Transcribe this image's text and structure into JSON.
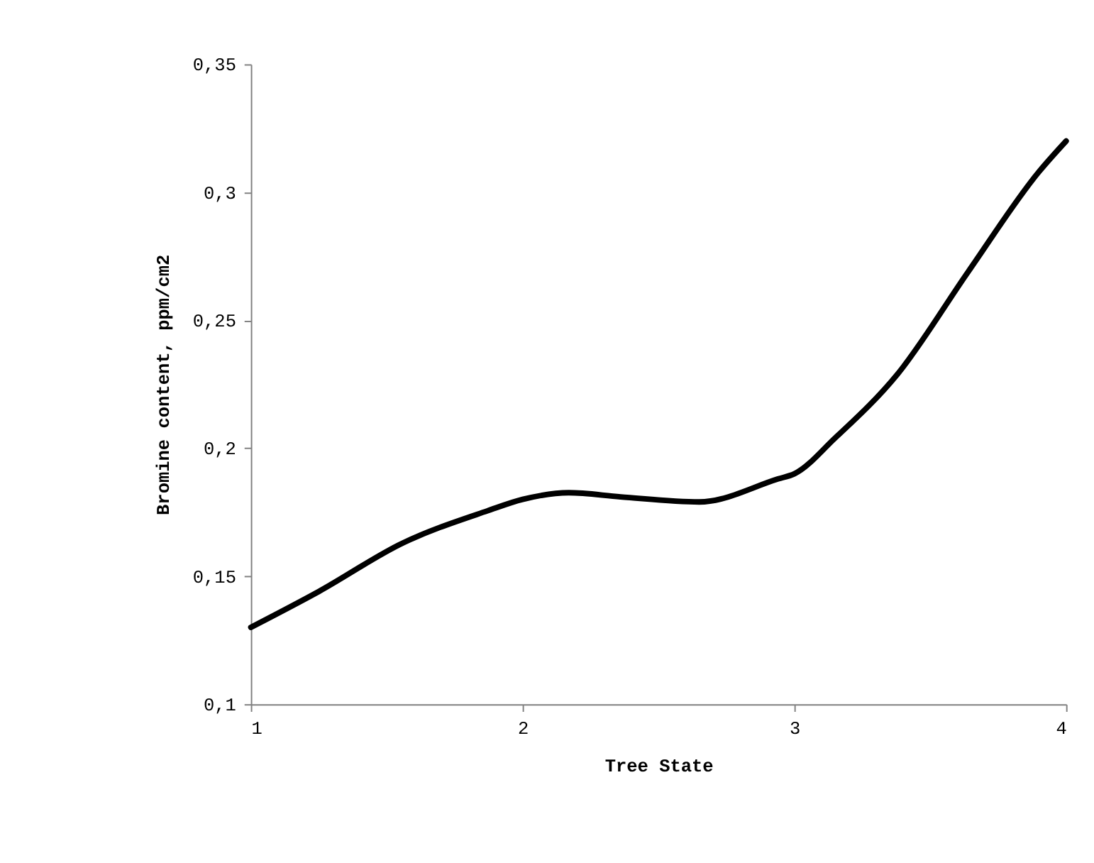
{
  "chart_data": {
    "type": "line",
    "xlabel": "Tree State",
    "ylabel": "Bromine content, ppm/cm2",
    "x": [
      1,
      1.25,
      1.56,
      1.87,
      2,
      2.17,
      2.36,
      2.65,
      2.94,
      3,
      3.15,
      3.38,
      3.64,
      3.9,
      4
    ],
    "series": [
      {
        "color": "#000000",
        "values": [
          0.13,
          0.144,
          0.163,
          0.1755,
          0.18,
          0.1826,
          0.181,
          0.179,
          0.188,
          0.19,
          0.204,
          0.229,
          0.269,
          0.308,
          0.32
        ]
      }
    ],
    "xlim": [
      1,
      4
    ],
    "xticks": [
      1,
      2,
      3,
      4
    ],
    "ylim": [
      0.1,
      0.35
    ],
    "yticks": [
      {
        "value": 0.1,
        "label": "0,1"
      },
      {
        "value": 0.15,
        "label": "0,15"
      },
      {
        "value": 0.2,
        "label": "0,2"
      },
      {
        "value": 0.25,
        "label": "0,25"
      },
      {
        "value": 0.3,
        "label": "0,3"
      },
      {
        "value": 0.35,
        "label": "0,35"
      }
    ],
    "grid": false,
    "legend": false,
    "marker": "none",
    "line_style": "solid"
  }
}
